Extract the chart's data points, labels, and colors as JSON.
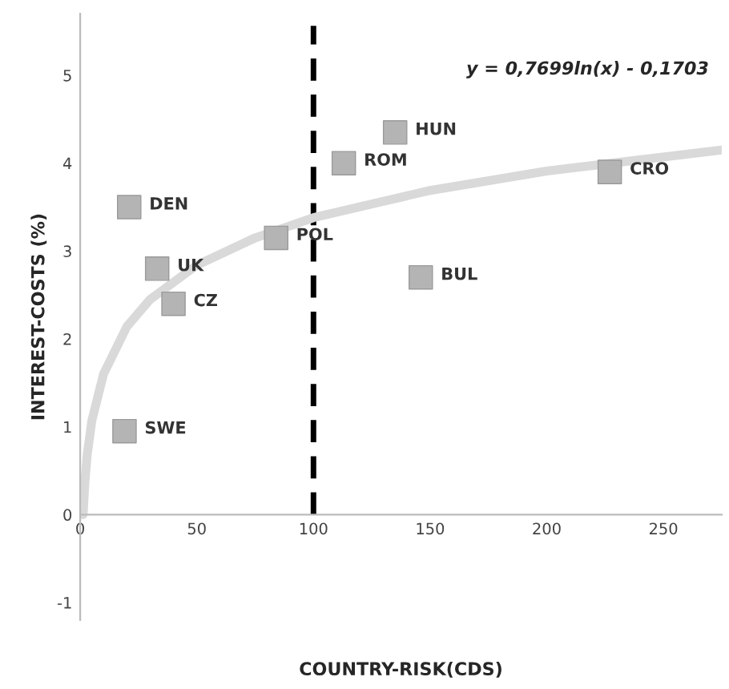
{
  "chart_data": {
    "type": "scatter",
    "xlabel": "COUNTRY-RISK(CDS)",
    "ylabel": "INTEREST-COSTS (%)",
    "xlim": [
      0,
      275
    ],
    "xticks": [
      0,
      50,
      100,
      150,
      200,
      250
    ],
    "ylim": [
      -1.2,
      5.7
    ],
    "yticks": [
      -1,
      0,
      1,
      2,
      3,
      4,
      5
    ],
    "grid": false,
    "legend": false,
    "marker": "square",
    "series": [
      {
        "color": "#b4b4b4",
        "x": [
          19,
          21,
          33,
          40,
          84,
          113,
          135,
          146,
          227
        ],
        "values": [
          0.95,
          3.5,
          2.8,
          2.4,
          3.15,
          4.0,
          4.35,
          2.7,
          3.9
        ]
      },
      {
        "type": "line",
        "marker": "none",
        "color": "#d9d9d9",
        "x": [
          1.25,
          2,
          3,
          5,
          10,
          20,
          30,
          50,
          75,
          100,
          150,
          200,
          275
        ],
        "values": [
          0.0,
          0.36,
          0.68,
          1.07,
          1.6,
          2.14,
          2.45,
          2.84,
          3.15,
          3.38,
          3.69,
          3.91,
          4.15
        ]
      }
    ],
    "ref_lines": [
      {
        "axis": "x",
        "value": 100,
        "color": "#000000",
        "line_style": "dashed"
      }
    ],
    "annotations": [
      {
        "text": "SWE",
        "x": 19,
        "y": 0.95
      },
      {
        "text": "DEN",
        "x": 21,
        "y": 3.5
      },
      {
        "text": "UK",
        "x": 33,
        "y": 2.8
      },
      {
        "text": "CZ",
        "x": 40,
        "y": 2.4
      },
      {
        "text": "POL",
        "x": 84,
        "y": 3.15
      },
      {
        "text": "ROM",
        "x": 113,
        "y": 4.0
      },
      {
        "text": "HUN",
        "x": 135,
        "y": 4.35
      },
      {
        "text": "BUL",
        "x": 146,
        "y": 2.7
      },
      {
        "text": "CRO",
        "x": 227,
        "y": 3.9
      },
      "y = 0,7699ln(x) - 0,1703"
    ]
  }
}
